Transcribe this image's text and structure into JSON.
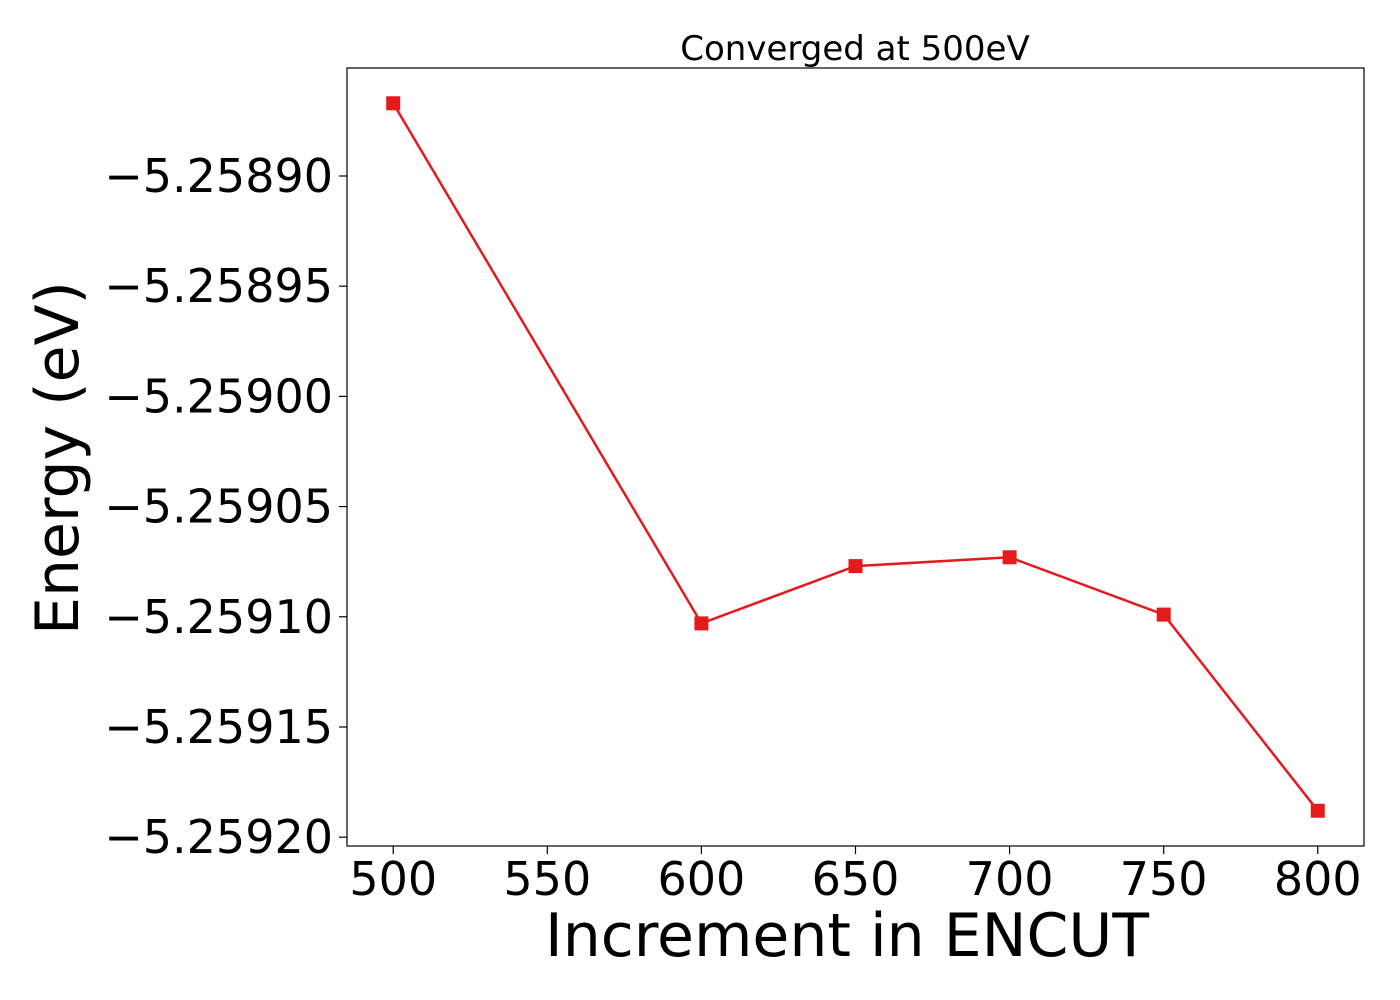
{
  "chart_data": {
    "type": "line",
    "title": "Converged at 500eV",
    "xlabel": "Increment in ENCUT",
    "ylabel": "Energy (eV)",
    "x": [
      500,
      600,
      650,
      700,
      750,
      800
    ],
    "series": [
      {
        "values": [
          -5.258867,
          -5.259103,
          -5.259077,
          -5.259073,
          -5.259099,
          -5.259188
        ]
      }
    ],
    "xlim": [
      485,
      815
    ],
    "ylim": [
      -5.259204,
      -5.258851
    ],
    "xticks": [
      500,
      550,
      600,
      650,
      700,
      750,
      800
    ],
    "xtick_labels": [
      "500",
      "550",
      "600",
      "650",
      "700",
      "750",
      "800"
    ],
    "yticks": [
      -5.2589,
      -5.25895,
      -5.259,
      -5.25905,
      -5.2591,
      -5.25915,
      -5.2592
    ],
    "ytick_labels": [
      "−5.25890",
      "−5.25895",
      "−5.25900",
      "−5.25905",
      "−5.25910",
      "−5.25915",
      "−5.25920"
    ],
    "marker": "square",
    "color": "#e41a1c",
    "grid": false,
    "legend": false
  }
}
